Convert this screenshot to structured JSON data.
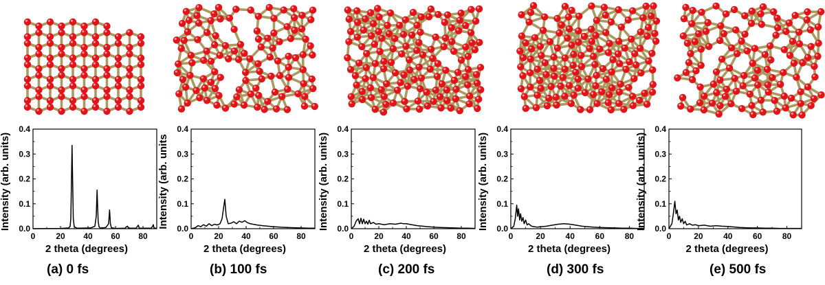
{
  "colors": {
    "atom": "#e0141a",
    "bond": "#a99a60",
    "line": "#000000"
  },
  "chart_data": [
    {
      "type": "line",
      "caption": "(a) 0 fs",
      "xlabel": "2 theta (degrees)",
      "ylabel": "Intensity (arb. units)",
      "xlim": [
        0,
        90
      ],
      "ylim": [
        0,
        0.4
      ],
      "xticks": [
        "0",
        "20",
        "40",
        "60",
        "80"
      ],
      "yticks": [
        "0.0",
        "0.1",
        "0.2",
        "0.3",
        "0.4"
      ],
      "series": [
        {
          "x": [
            0,
            20,
            26,
            27,
            27.5,
            28,
            28.4,
            28.8,
            29.3,
            30,
            32,
            42,
            45,
            46,
            46.6,
            47,
            47.4,
            48,
            49,
            53,
            55,
            55.7,
            56.3,
            57,
            60,
            67,
            68,
            68.7,
            69.5,
            75,
            76,
            76.6,
            77.3,
            86,
            87,
            87.5,
            88,
            90
          ],
          "y": [
            0,
            0.001,
            0.003,
            0.01,
            0.04,
            0.2,
            0.335,
            0.2,
            0.04,
            0.008,
            0.002,
            0.003,
            0.01,
            0.05,
            0.155,
            0.09,
            0.03,
            0.008,
            0.002,
            0.005,
            0.02,
            0.075,
            0.02,
            0.004,
            0.001,
            0.002,
            0.008,
            0.01,
            0.002,
            0.002,
            0.01,
            0.014,
            0.002,
            0.002,
            0.01,
            0.016,
            0.003,
            0.001
          ]
        }
      ]
    },
    {
      "type": "line",
      "caption": "(b) 100 fs",
      "xlabel": "2 theta (degrees)",
      "ylabel": "Intensity (arb. units",
      "xlim": [
        0,
        90
      ],
      "ylim": [
        0,
        0.4
      ],
      "xticks": [
        "0",
        "20",
        "40",
        "60",
        "80"
      ],
      "yticks": [
        "0.0",
        "0.1",
        "0.2",
        "0.3",
        "0.4"
      ],
      "series": [
        {
          "x": [
            0,
            3,
            5,
            7,
            9,
            11,
            13,
            15,
            17,
            19,
            21,
            22.5,
            23.5,
            24.5,
            25.5,
            27,
            29,
            31,
            33,
            35,
            37,
            39,
            41,
            43,
            45,
            48,
            52,
            56,
            60,
            65,
            70,
            75,
            80,
            85,
            90
          ],
          "y": [
            0,
            0.004,
            0.012,
            0.008,
            0.016,
            0.01,
            0.02,
            0.012,
            0.018,
            0.015,
            0.02,
            0.04,
            0.08,
            0.118,
            0.05,
            0.02,
            0.022,
            0.028,
            0.02,
            0.03,
            0.026,
            0.032,
            0.024,
            0.02,
            0.018,
            0.015,
            0.012,
            0.01,
            0.008,
            0.006,
            0.005,
            0.004,
            0.003,
            0.002,
            0.002
          ]
        }
      ]
    },
    {
      "type": "line",
      "caption": "(c) 200 fs",
      "xlabel": "2 theta (degrees)",
      "ylabel": "Intensity (arb. units)",
      "xlim": [
        0,
        90
      ],
      "ylim": [
        0,
        0.4
      ],
      "xticks": [
        "0",
        "20",
        "40",
        "60",
        "80"
      ],
      "yticks": [
        "0.0",
        "0.1",
        "0.2",
        "0.3",
        "0.4"
      ],
      "series": [
        {
          "x": [
            0,
            2,
            3.5,
            5,
            6,
            7,
            8,
            9,
            10,
            11,
            12,
            13,
            14,
            16,
            18,
            20,
            24,
            28,
            32,
            36,
            38,
            40,
            44,
            48,
            52,
            56,
            60,
            65,
            70,
            75,
            80,
            85,
            90
          ],
          "y": [
            0,
            0.01,
            0.03,
            0.04,
            0.02,
            0.042,
            0.02,
            0.038,
            0.02,
            0.03,
            0.018,
            0.034,
            0.02,
            0.025,
            0.018,
            0.02,
            0.016,
            0.02,
            0.018,
            0.022,
            0.02,
            0.02,
            0.016,
            0.012,
            0.01,
            0.008,
            0.006,
            0.005,
            0.004,
            0.003,
            0.002,
            0.002,
            0.001
          ]
        }
      ]
    },
    {
      "type": "line",
      "caption": "(d) 300 fs",
      "xlabel": "2 theta (degrees)",
      "ylabel": "Intensity (arb. units)",
      "xlim": [
        0,
        90
      ],
      "ylim": [
        0,
        0.4
      ],
      "xticks": [
        "0",
        "20",
        "40",
        "60",
        "80"
      ],
      "yticks": [
        "0.0",
        "0.1",
        "0.2",
        "0.3",
        "0.4"
      ],
      "series": [
        {
          "x": [
            0,
            2,
            3,
            4,
            4.6,
            5.2,
            6,
            6.6,
            7.4,
            8.2,
            9,
            10,
            11,
            12,
            14,
            16,
            18,
            20,
            24,
            28,
            32,
            36,
            40,
            44,
            48,
            52,
            56,
            60,
            65,
            70,
            75,
            80,
            85,
            90
          ],
          "y": [
            0,
            0.01,
            0.04,
            0.095,
            0.05,
            0.08,
            0.035,
            0.06,
            0.03,
            0.045,
            0.02,
            0.035,
            0.015,
            0.02,
            0.01,
            0.008,
            0.006,
            0.008,
            0.01,
            0.014,
            0.018,
            0.02,
            0.018,
            0.014,
            0.01,
            0.008,
            0.006,
            0.005,
            0.004,
            0.003,
            0.002,
            0.002,
            0.001,
            0.001
          ]
        }
      ]
    },
    {
      "type": "line",
      "caption": "(e) 500 fs",
      "xlabel": "2 theta (degrees)",
      "ylabel": "Intensity (arb. units)",
      "xlim": [
        0,
        90
      ],
      "ylim": [
        0,
        0.4
      ],
      "xticks": [
        "0",
        "20",
        "40",
        "60",
        "80"
      ],
      "yticks": [
        "0.0",
        "0.1",
        "0.2",
        "0.3",
        "0.4"
      ],
      "series": [
        {
          "x": [
            0,
            2,
            3,
            4,
            4.8,
            5.6,
            6.4,
            7.2,
            8,
            9,
            10,
            11,
            12,
            14,
            16,
            18,
            20,
            24,
            28,
            32,
            36,
            40,
            44,
            48,
            52,
            56,
            60,
            65,
            70,
            75,
            80,
            85,
            90
          ],
          "y": [
            0,
            0.02,
            0.06,
            0.11,
            0.06,
            0.075,
            0.035,
            0.05,
            0.025,
            0.04,
            0.02,
            0.03,
            0.015,
            0.02,
            0.014,
            0.016,
            0.012,
            0.014,
            0.01,
            0.012,
            0.01,
            0.009,
            0.007,
            0.005,
            0.004,
            0.003,
            0.003,
            0.002,
            0.002,
            0.001,
            0.001,
            0.001,
            0.001
          ]
        }
      ]
    }
  ]
}
